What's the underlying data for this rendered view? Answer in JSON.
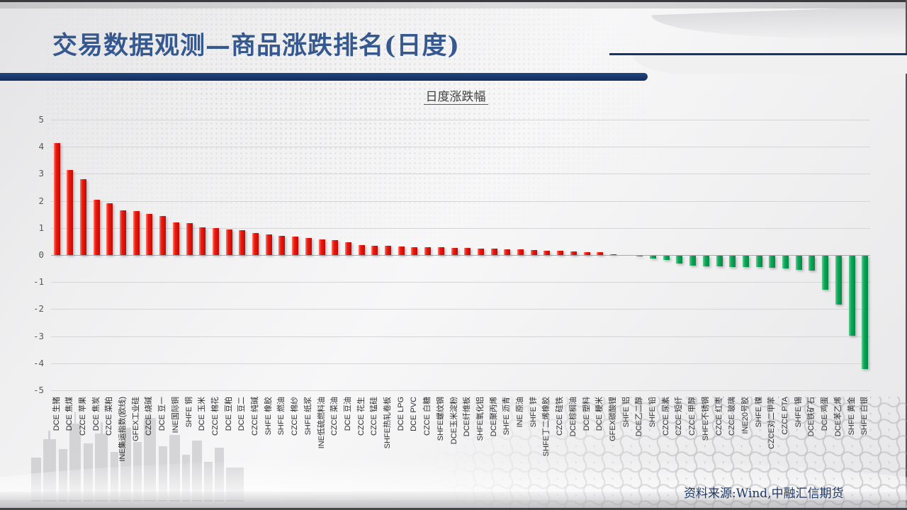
{
  "slide": {
    "title": "交易数据观测—商品涨跌排名(日度)",
    "footer_source": "资料来源:Wind,中融汇信期货",
    "accent_color": "#16356b"
  },
  "chart_data": {
    "type": "bar",
    "title": "日度涨跌幅",
    "xlabel": "",
    "ylabel": "",
    "ylim": [
      -5,
      5
    ],
    "y_ticks": [
      5,
      4,
      3,
      2,
      1,
      0,
      -1,
      -2,
      -3,
      -4,
      -5
    ],
    "grid": true,
    "legend_position": "none",
    "positive_color": "#df1309",
    "negative_color": "#00a152",
    "categories": [
      "DCE 生猪",
      "DCE 焦煤",
      "CZCE 苹果",
      "DCE 焦炭",
      "CZCE 菜粕",
      "INE集运指数(欧线)",
      "GFEX工业硅",
      "CZCE 烧碱",
      "DCE 豆一",
      "INE国际铜",
      "SHFE 铜",
      "DCE 玉米",
      "CZCE 棉花",
      "DCE 豆粕",
      "DCE 豆二",
      "CZCE 纯碱",
      "SHFE 橡胶",
      "SHFE 燃油",
      "CZCE 棉纱",
      "SHFE 纸浆",
      "INE低硫燃料油",
      "CZCE 菜油",
      "DCE 豆油",
      "CZCE 花生",
      "CZCE 锰硅",
      "SHFE热轧卷板",
      "DCE LPG",
      "DCE PVC",
      "CZCE 白糖",
      "SHFE螺纹钢",
      "DCE玉米淀粉",
      "DCE纤维板",
      "SHFE氧化铝",
      "DCE聚丙烯",
      "SHFE 沥青",
      "INE 原油",
      "SHFE 锌",
      "SHFE丁二烯橡胶",
      "CZCE 硅铁",
      "DCE棕榈油",
      "DCE 塑料",
      "DCE 粳米",
      "GFEX碳酸锂",
      "SHFE 铝",
      "DCE乙二醇",
      "SHFE 铅",
      "CZCE 尿素",
      "CZCE 短纤",
      "CZCE 甲醇",
      "SHFE不锈钢",
      "CZCE 红枣",
      "CZCE 玻璃",
      "INE20号胶",
      "SHFE 镍",
      "CZCE对二甲苯",
      "CZCE PTA",
      "SHFE 锡",
      "DCE铁矿石",
      "DCE 鸡蛋",
      "DCE苯乙烯",
      "SHFE 黄金",
      "SHFE 白银"
    ],
    "values": [
      4.15,
      3.15,
      2.8,
      2.05,
      1.9,
      1.65,
      1.62,
      1.52,
      1.45,
      1.2,
      1.18,
      1.01,
      1.0,
      0.95,
      0.92,
      0.8,
      0.76,
      0.71,
      0.67,
      0.63,
      0.58,
      0.55,
      0.48,
      0.37,
      0.34,
      0.33,
      0.32,
      0.3,
      0.29,
      0.28,
      0.26,
      0.25,
      0.24,
      0.23,
      0.21,
      0.2,
      0.18,
      0.17,
      0.15,
      0.13,
      0.11,
      0.1,
      0.02,
      0.0,
      -0.02,
      -0.1,
      -0.15,
      -0.28,
      -0.36,
      -0.38,
      -0.4,
      -0.41,
      -0.42,
      -0.43,
      -0.45,
      -0.47,
      -0.52,
      -0.55,
      -1.25,
      -1.8,
      -2.95,
      -4.2
    ]
  }
}
